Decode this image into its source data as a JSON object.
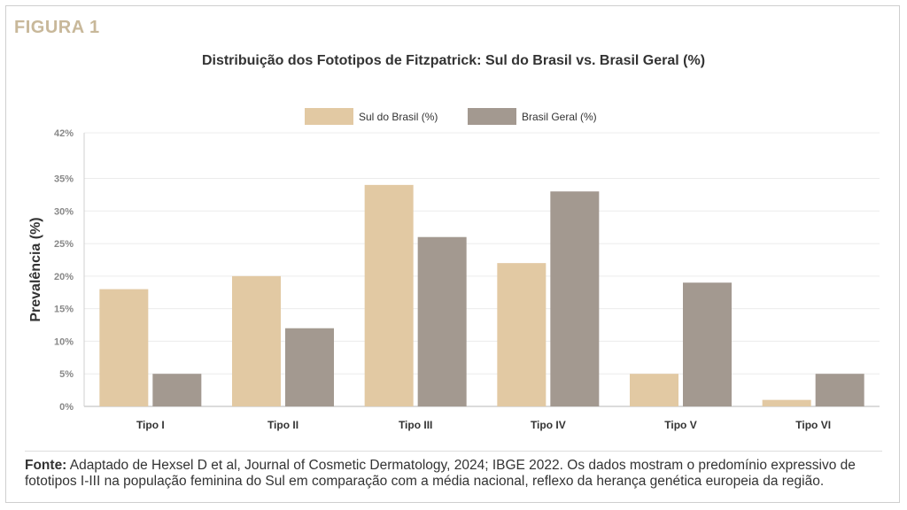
{
  "figure_label": "FIGURA 1",
  "footnote": {
    "lead": "Fonte:",
    "text": " Adaptado de Hexsel D et al, Journal of Cosmetic Dermatology, 2024; IBGE 2022. Os dados mostram o predomínio expressivo de fototipos I-III na população feminina do Sul em comparação com a média nacional, reflexo da herança genética europeia da região."
  },
  "chart_data": {
    "type": "bar",
    "title": "Distribuição dos Fototipos de Fitzpatrick: Sul do Brasil vs. Brasil Geral (%)",
    "xlabel": "",
    "ylabel": "Prevalência (%)",
    "ylim": [
      0,
      42
    ],
    "yticks": [
      0,
      5,
      10,
      15,
      20,
      25,
      30,
      35,
      42
    ],
    "ytick_labels": [
      "0%",
      "5%",
      "10%",
      "15%",
      "20%",
      "25%",
      "30%",
      "35%",
      "42%"
    ],
    "grid": true,
    "legend_position": "top-center",
    "categories": [
      "Tipo I",
      "Tipo II",
      "Tipo III",
      "Tipo IV",
      "Tipo V",
      "Tipo VI"
    ],
    "series": [
      {
        "name": "Sul do Brasil (%)",
        "color": "#e2c9a3",
        "values": [
          18,
          20,
          34,
          22,
          5,
          1
        ]
      },
      {
        "name": "Brasil Geral (%)",
        "color": "#a39990",
        "values": [
          5,
          12,
          26,
          33,
          19,
          5
        ]
      }
    ]
  }
}
